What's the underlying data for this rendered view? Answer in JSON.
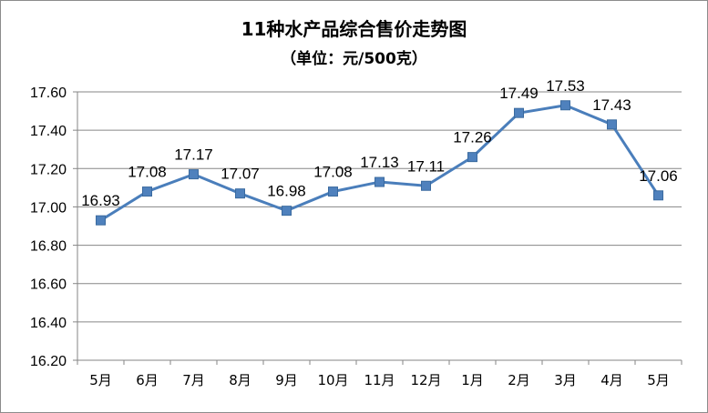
{
  "chart_data": {
    "type": "line",
    "title": "11种水产品综合售价走势图",
    "subtitle": "（单位：元/500克）",
    "categories": [
      "5月",
      "6月",
      "7月",
      "8月",
      "9月",
      "10月",
      "11月",
      "12月",
      "1月",
      "2月",
      "3月",
      "4月",
      "5月"
    ],
    "series": [
      {
        "values": [
          16.93,
          17.08,
          17.17,
          17.07,
          16.98,
          17.08,
          17.13,
          17.11,
          17.26,
          17.49,
          17.53,
          17.43,
          17.06
        ],
        "labels": [
          "16.93",
          "17.08",
          "17.17",
          "17.07",
          "16.98",
          "17.08",
          "17.13",
          "17.11",
          "17.26",
          "17.49",
          "17.53",
          "17.43",
          "17.06"
        ]
      }
    ],
    "yticks": [
      "16.20",
      "16.40",
      "16.60",
      "16.80",
      "17.00",
      "17.20",
      "17.40",
      "17.60"
    ],
    "ylim": [
      16.2,
      17.6
    ],
    "grid": true,
    "line_color": "#4a7ebb",
    "marker_color": "#4f81bd",
    "grid_color": "#868686"
  }
}
